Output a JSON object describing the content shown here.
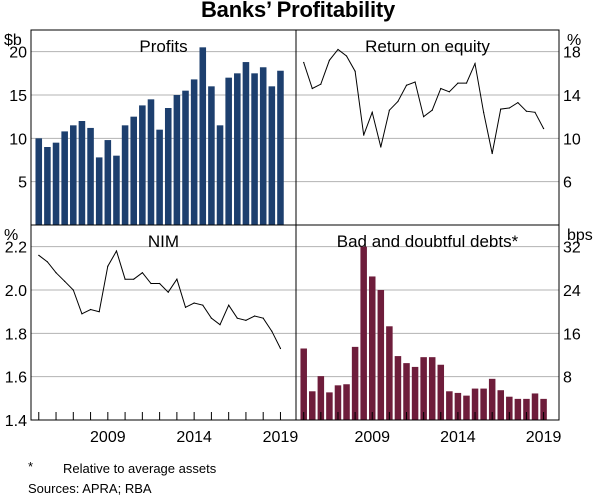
{
  "title": "Banks’ Profitability",
  "footnote_marker": "*",
  "footnote_text": "Relative to average assets",
  "sources": "Sources: APRA; RBA",
  "colors": {
    "bar_blue": "#1d3f6e",
    "bar_maroon": "#6e1d3b",
    "line": "#000000",
    "grid": "#b3b3b3"
  },
  "chart_data": [
    {
      "type": "bar",
      "title": "Profits",
      "unit_label": "$b",
      "ylim": [
        0,
        22.5
      ],
      "yticks": [
        "5",
        "10",
        "15",
        "20"
      ],
      "ytick_values": [
        5,
        10,
        15,
        20
      ],
      "x": [
        2005.0,
        2005.5,
        2006.0,
        2006.5,
        2007.0,
        2007.5,
        2008.0,
        2008.5,
        2009.0,
        2009.5,
        2010.0,
        2010.5,
        2011.0,
        2011.5,
        2012.0,
        2012.5,
        2013.0,
        2013.5,
        2014.0,
        2014.5,
        2015.0,
        2015.5,
        2016.0,
        2016.5,
        2017.0,
        2017.5,
        2018.0,
        2018.5,
        2019.0
      ],
      "values": [
        10.0,
        9.0,
        9.5,
        10.8,
        11.5,
        12.0,
        11.2,
        7.8,
        9.8,
        8.0,
        11.5,
        12.5,
        13.8,
        14.5,
        11.0,
        13.5,
        15.0,
        15.5,
        16.8,
        20.5,
        16.0,
        11.5,
        17.0,
        17.5,
        18.8,
        17.5,
        18.2,
        16.0,
        17.8
      ]
    },
    {
      "type": "line",
      "title": "Return on equity",
      "unit_label": "%",
      "ylim": [
        2,
        20
      ],
      "yticks": [
        "6",
        "10",
        "14",
        "18"
      ],
      "ytick_values": [
        6,
        10,
        14,
        18
      ],
      "x": [
        2005.0,
        2005.5,
        2006.0,
        2006.5,
        2007.0,
        2007.5,
        2008.0,
        2008.5,
        2009.0,
        2009.5,
        2010.0,
        2010.5,
        2011.0,
        2011.5,
        2012.0,
        2012.5,
        2013.0,
        2013.5,
        2014.0,
        2014.5,
        2015.0,
        2015.5,
        2016.0,
        2016.5,
        2017.0,
        2017.5,
        2018.0,
        2018.5,
        2019.0
      ],
      "values": [
        17.0,
        14.6,
        15.0,
        17.2,
        18.2,
        17.6,
        16.2,
        10.3,
        12.4,
        9.2,
        12.6,
        13.4,
        14.9,
        15.2,
        12.0,
        12.6,
        14.6,
        14.3,
        15.1,
        15.1,
        16.9,
        12.4,
        8.6,
        12.7,
        12.8,
        13.3,
        12.5,
        12.4,
        10.9
      ]
    },
    {
      "type": "line",
      "title": "NIM",
      "unit_label": "%",
      "ylim": [
        1.4,
        2.3
      ],
      "yticks": [
        "1.4",
        "1.6",
        "1.8",
        "2.0",
        "2.2"
      ],
      "ytick_values": [
        1.4,
        1.6,
        1.8,
        2.0,
        2.2
      ],
      "xtick_labels": [
        "2009",
        "2014",
        "2019"
      ],
      "xtick_values": [
        2009,
        2014,
        2019
      ],
      "x": [
        2005.0,
        2005.5,
        2006.0,
        2006.5,
        2007.0,
        2007.5,
        2008.0,
        2008.5,
        2009.0,
        2009.5,
        2010.0,
        2010.5,
        2011.0,
        2011.5,
        2012.0,
        2012.5,
        2013.0,
        2013.5,
        2014.0,
        2014.5,
        2015.0,
        2015.5,
        2016.0,
        2016.5,
        2017.0,
        2017.5,
        2018.0,
        2018.5,
        2019.0
      ],
      "values": [
        2.16,
        2.13,
        2.08,
        2.04,
        2.0,
        1.89,
        1.91,
        1.9,
        2.11,
        2.18,
        2.05,
        2.05,
        2.08,
        2.03,
        2.03,
        1.99,
        2.05,
        1.92,
        1.94,
        1.93,
        1.87,
        1.84,
        1.93,
        1.87,
        1.86,
        1.88,
        1.87,
        1.81,
        1.73
      ]
    },
    {
      "type": "bar",
      "title": "Bad and doubtful debts*",
      "unit_label": "bps",
      "ylim": [
        0,
        36
      ],
      "yticks": [
        "8",
        "16",
        "24",
        "32"
      ],
      "ytick_values": [
        8,
        16,
        24,
        32
      ],
      "xtick_labels": [
        "2009",
        "2014",
        "2019"
      ],
      "xtick_values": [
        2009,
        2014,
        2019
      ],
      "x": [
        2005.0,
        2005.5,
        2006.0,
        2006.5,
        2007.0,
        2007.5,
        2008.0,
        2008.5,
        2009.0,
        2009.5,
        2010.0,
        2010.5,
        2011.0,
        2011.5,
        2012.0,
        2012.5,
        2013.0,
        2013.5,
        2014.0,
        2014.5,
        2015.0,
        2015.5,
        2016.0,
        2016.5,
        2017.0,
        2017.5,
        2018.0,
        2018.5,
        2019.0
      ],
      "values": [
        13.2,
        5.3,
        8.1,
        5.1,
        6.4,
        6.6,
        13.5,
        32.0,
        26.5,
        24.0,
        17.3,
        11.8,
        10.5,
        9.8,
        11.6,
        11.6,
        10.2,
        5.3,
        5.0,
        4.5,
        5.8,
        5.8,
        7.6,
        5.5,
        4.3,
        3.9,
        3.9,
        4.9,
        3.9
      ]
    }
  ]
}
